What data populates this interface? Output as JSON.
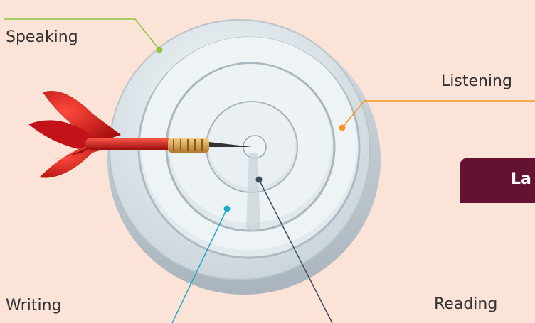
{
  "labels": {
    "speaking": "Speaking",
    "listening": "Listening",
    "writing": "Writing",
    "reading": "Reading"
  },
  "title_box": {
    "text": "La"
  },
  "colors": {
    "background": "#fbe3d7",
    "speaking_leader": "#8dc63f",
    "listening_leader": "#f7941d",
    "writing_leader": "#1ba9d1",
    "reading_leader": "#3d4b5c",
    "title_box": "#651131",
    "dart_flight": "#d7141b"
  },
  "icons": [
    "target-icon",
    "dart-icon"
  ]
}
